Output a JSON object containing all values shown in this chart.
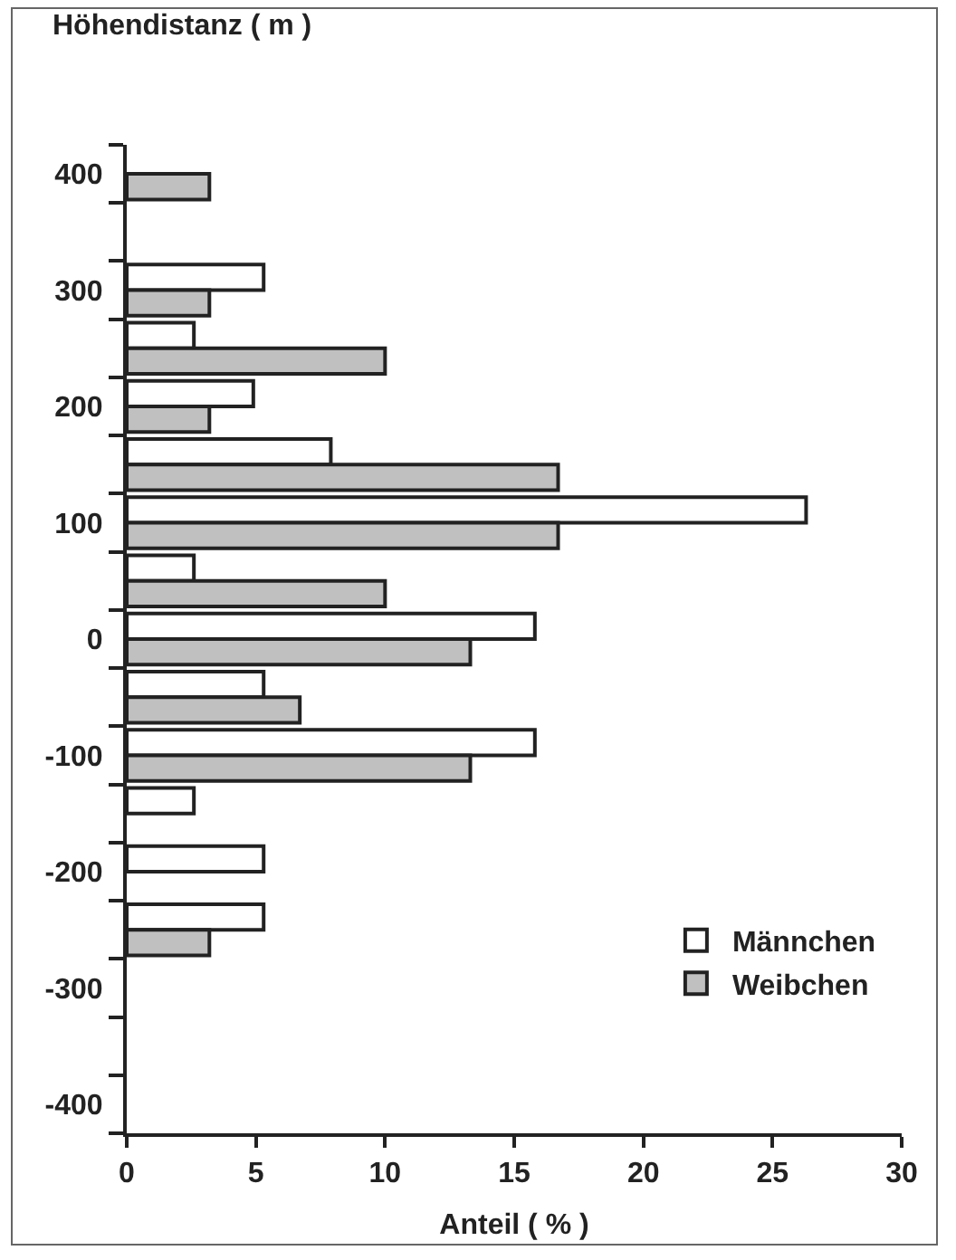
{
  "chart_data": {
    "type": "bar",
    "orientation": "horizontal",
    "ylabel": "Höhendistanz ( m )",
    "xlabel": "Anteil ( % )",
    "categories": [
      "400",
      null,
      "300",
      null,
      "200",
      null,
      "100",
      null,
      "0",
      null,
      "-100",
      null,
      "-200",
      null,
      "-300",
      null,
      "-400"
    ],
    "series": [
      {
        "name": "Männchen",
        "color": "#ffffff",
        "values": [
          0,
          0,
          5.3,
          2.6,
          4.9,
          7.9,
          26.3,
          2.6,
          15.8,
          5.3,
          15.8,
          2.6,
          5.3,
          5.3,
          0,
          0,
          0
        ]
      },
      {
        "name": "Weibchen",
        "color": "#c0c0c0",
        "values": [
          3.2,
          0,
          3.2,
          10.0,
          3.2,
          16.7,
          16.7,
          10.0,
          13.3,
          6.7,
          13.3,
          0,
          0,
          3.2,
          0,
          0,
          0
        ]
      }
    ],
    "xlim": [
      0,
      30
    ],
    "xticks": [
      0,
      5,
      10,
      15,
      20,
      25,
      30
    ],
    "grid": false,
    "legend": "bottom right"
  }
}
